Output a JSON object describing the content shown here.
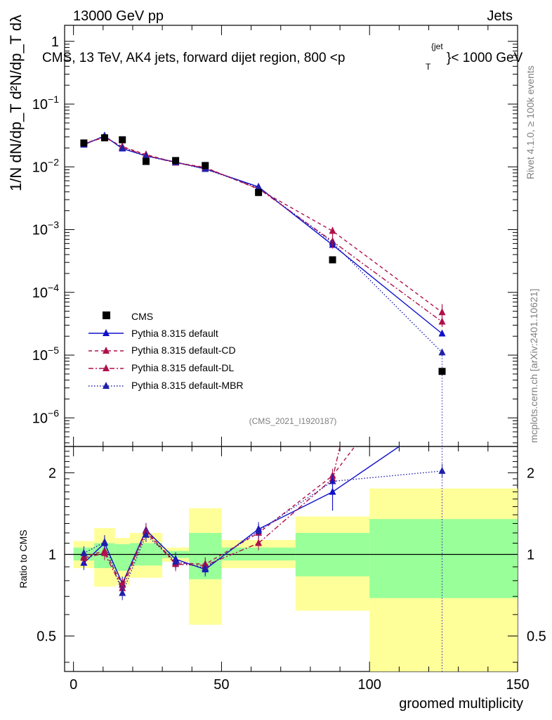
{
  "header": {
    "left": "13000 GeV pp",
    "right": "Jets",
    "plot_title": "CMS, 13 TeV, AK4 jets, forward dijet region, 800 <p",
    "plot_title_sup": "{jet",
    "plot_title_sub": "T",
    "plot_title_end": "}< 1000 GeV",
    "rivet_label": "Rivet 4.1.0, ≥ 100k events",
    "mcplots_label": "mcplots.cern.ch [arXiv:2401.10621]",
    "analysis_id": "(CMS_2021_I1920187)"
  },
  "axes": {
    "ylabel_main": "1/N dN/dp_T d²N/dp_T dλ",
    "ylabel_ratio": "Ratio to CMS",
    "xlabel": "groomed multiplicity"
  },
  "chart_data": [
    {
      "type": "scatter",
      "panel": "main",
      "yscale": "log",
      "xlim": [
        -3,
        150
      ],
      "ylim": [
        3.5e-07,
        1.8
      ],
      "xticks": [
        0,
        50,
        100,
        150
      ],
      "ytick_labels": [
        {
          "v": 1,
          "base": "1",
          "exp": ""
        },
        {
          "v": 0.1,
          "base": "10",
          "exp": "−1"
        },
        {
          "v": 0.01,
          "base": "10",
          "exp": "−2"
        },
        {
          "v": 0.001,
          "base": "10",
          "exp": "−3"
        },
        {
          "v": 0.0001,
          "base": "10",
          "exp": "−4"
        },
        {
          "v": 1e-05,
          "base": "10",
          "exp": "−5"
        },
        {
          "v": 1e-06,
          "base": "10",
          "exp": "−6"
        }
      ],
      "data": {
        "name": "CMS",
        "x": [
          3.5,
          10.5,
          16.5,
          24.5,
          34.5,
          44.5,
          62.5,
          87.5,
          124.5
        ],
        "y": [
          0.024,
          0.029,
          0.027,
          0.0122,
          0.0126,
          0.0105,
          0.0039,
          0.00033,
          5.5e-06
        ]
      },
      "series": [
        {
          "name": "Pythia 8.315 default",
          "color": "#1010cc",
          "style": "solid",
          "x": [
            3.5,
            10.5,
            16.5,
            24.5,
            34.5,
            44.5,
            62.5,
            87.5,
            124.5
          ],
          "y": [
            0.0225,
            0.031,
            0.0195,
            0.015,
            0.0119,
            0.0093,
            0.0048,
            0.00057,
            2.2e-05
          ]
        },
        {
          "name": "Pythia 8.315 default-CD",
          "color": "#b0104a",
          "style": "dashed",
          "x": [
            3.5,
            10.5,
            16.5,
            24.5,
            34.5,
            44.5,
            62.5,
            87.5,
            124.5
          ],
          "y": [
            0.0235,
            0.0295,
            0.021,
            0.0157,
            0.0117,
            0.0098,
            0.0044,
            0.00095,
            4.8e-05
          ]
        },
        {
          "name": "Pythia 8.315 default-DL",
          "color": "#b0104a",
          "style": "dashdot",
          "x": [
            3.5,
            10.5,
            16.5,
            24.5,
            34.5,
            44.5,
            62.5,
            87.5,
            124.5
          ],
          "y": [
            0.0232,
            0.03,
            0.0205,
            0.0152,
            0.0116,
            0.0096,
            0.0045,
            0.00065,
            3.4e-05
          ]
        },
        {
          "name": "Pythia 8.315 default-MBR",
          "color": "#2020aa",
          "style": "dotted",
          "x": [
            3.5,
            10.5,
            16.5,
            24.5,
            34.5,
            44.5,
            62.5,
            87.5,
            124.5
          ],
          "y": [
            0.0228,
            0.0312,
            0.0198,
            0.0148,
            0.0118,
            0.0092,
            0.0047,
            0.00062,
            1.1e-05
          ]
        }
      ]
    },
    {
      "type": "line",
      "panel": "ratio",
      "yscale": "log",
      "xlim": [
        -3,
        150
      ],
      "ylim": [
        0.37,
        2.5
      ],
      "yticks": [
        0.5,
        1,
        2
      ],
      "ytick_labels": [
        "0.5",
        "1",
        "2"
      ],
      "xlabel": "groomed multiplicity",
      "ylabel": "Ratio to CMS",
      "uncertainty_bands": [
        {
          "x0": 0,
          "x1": 7,
          "inner": [
            0.95,
            1.06
          ],
          "outer": [
            0.89,
            1.12
          ]
        },
        {
          "x0": 7,
          "x1": 14,
          "inner": [
            0.89,
            1.1
          ],
          "outer": [
            0.76,
            1.25
          ]
        },
        {
          "x0": 14,
          "x1": 19,
          "inner": [
            0.87,
            1.09
          ],
          "outer": [
            0.77,
            1.15
          ]
        },
        {
          "x0": 19,
          "x1": 30,
          "inner": [
            0.91,
            1.1
          ],
          "outer": [
            0.82,
            1.2
          ]
        },
        {
          "x0": 30,
          "x1": 39,
          "inner": [
            0.97,
            1.03
          ],
          "outer": [
            0.94,
            1.06
          ]
        },
        {
          "x0": 39,
          "x1": 50,
          "inner": [
            0.81,
            1.2
          ],
          "outer": [
            0.55,
            1.48
          ]
        },
        {
          "x0": 50,
          "x1": 75,
          "inner": [
            0.95,
            1.06
          ],
          "outer": [
            0.89,
            1.13
          ]
        },
        {
          "x0": 75,
          "x1": 100,
          "inner": [
            0.83,
            1.2
          ],
          "outer": [
            0.62,
            1.38
          ]
        },
        {
          "x0": 100,
          "x1": 150,
          "inner": [
            0.69,
            1.35
          ],
          "outer": [
            0.37,
            1.75
          ]
        }
      ],
      "series": [
        {
          "name": "Pythia 8.315 default",
          "color": "#1010cc",
          "style": "solid",
          "x": [
            3.5,
            10.5,
            16.5,
            24.5,
            34.5,
            44.5,
            62.5,
            87.5,
            110
          ],
          "y": [
            0.93,
            1.1,
            0.78,
            1.23,
            0.96,
            0.88,
            1.24,
            1.7,
            2.5
          ]
        },
        {
          "name": "Pythia 8.315 default-CD",
          "color": "#b0104a",
          "style": "dashed",
          "x": [
            3.5,
            10.5,
            16.5,
            24.5,
            34.5,
            44.5,
            62.5,
            87.5,
            95
          ],
          "y": [
            0.98,
            1.03,
            0.77,
            1.22,
            0.93,
            0.92,
            1.2,
            1.95,
            2.5
          ]
        },
        {
          "name": "Pythia 8.315 default-DL",
          "color": "#b0104a",
          "style": "dashdot",
          "x": [
            3.5,
            10.5,
            16.5,
            24.5,
            34.5,
            44.5,
            62.5,
            87.5,
            90
          ],
          "y": [
            0.97,
            1.01,
            0.75,
            1.21,
            0.92,
            0.91,
            1.1,
            1.9,
            2.5
          ]
        },
        {
          "name": "Pythia 8.315 default-MBR",
          "color": "#2020aa",
          "style": "dotted",
          "x": [
            3.5,
            10.5,
            16.5,
            24.5,
            34.5,
            44.5,
            62.5,
            87.5,
            124.5
          ],
          "y": [
            1.01,
            1.11,
            0.72,
            1.18,
            0.94,
            0.89,
            1.22,
            1.86,
            2.03
          ]
        }
      ]
    }
  ]
}
